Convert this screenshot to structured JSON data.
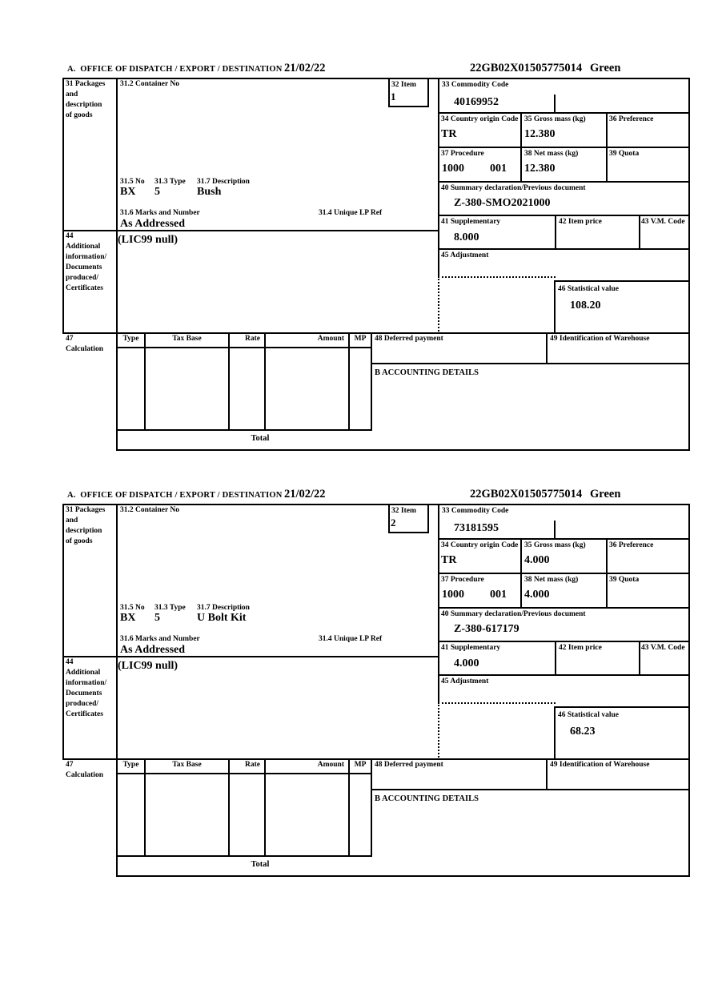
{
  "document": {
    "header": {
      "title": "A.  OFFICE OF DISPATCH / EXPORT / DESTINATION",
      "date": "21/02/22",
      "reference": "22GB02X01505775014",
      "status": "Green"
    },
    "labels": {
      "packages": [
        "31 Packages",
        "and",
        "description",
        "of goods"
      ],
      "container_no": "31.2 Container No",
      "item": "32 Item",
      "commodity_code": "33 Commodity Code",
      "country_origin_code": "34 Country origin Code",
      "gross_mass": "35 Gross mass (kg)",
      "preference": "36 Preference",
      "procedure": "37 Procedure",
      "net_mass": "38 Net mass (kg)",
      "quota": "39 Quota",
      "summary_declaration": "40 Summary declaration/Previous document",
      "supplementary": "41 Supplementary",
      "item_price": "42 Item price",
      "vm_code": "43 V.M. Code",
      "additional": [
        "44",
        "Additional",
        "information/",
        "Documents",
        "produced/",
        "Certificates"
      ],
      "adjustment": "45 Adjustment",
      "statistical_value": "46 Statistical value",
      "package_no": "31.5 No",
      "package_type": "31.3 Type",
      "description": "31.7 Description",
      "marks_and_number": "31.6 Marks and Number",
      "unique_lp_ref": "31.4 Unique LP Ref",
      "calculation": [
        "47",
        "Calculation"
      ],
      "tax_type": "Type",
      "tax_base": "Tax Base",
      "tax_rate": "Rate",
      "tax_amount": "Amount",
      "tax_mp": "MP",
      "deferred_payment": "48 Deferred payment",
      "warehouse_id": "49 Identification of Warehouse",
      "accounting_details": "B ACCOUNTING DETAILS",
      "total": "Total"
    },
    "items": [
      {
        "item_no": "1",
        "commodity_code": "40169952",
        "country_origin": "TR",
        "gross_mass": "12.380",
        "procedure_code": "1000",
        "procedure_code2": "001",
        "net_mass": "12.380",
        "previous_document": "Z-380-SMO2021000",
        "supplementary_units": "8.000",
        "statistical_value": "108.20",
        "package_no": "BX",
        "package_type": "5",
        "goods_description": "Bush",
        "marks": "As Addressed",
        "additional_information": "(LIC99 null)"
      },
      {
        "item_no": "2",
        "commodity_code": "73181595",
        "country_origin": "TR",
        "gross_mass": "4.000",
        "procedure_code": "1000",
        "procedure_code2": "001",
        "net_mass": "4.000",
        "previous_document": "Z-380-617179",
        "supplementary_units": "4.000",
        "statistical_value": "68.23",
        "package_no": "BX",
        "package_type": "5",
        "goods_description": "U Bolt Kit",
        "marks": "As Addressed",
        "additional_information": "(LIC99 null)"
      }
    ]
  }
}
